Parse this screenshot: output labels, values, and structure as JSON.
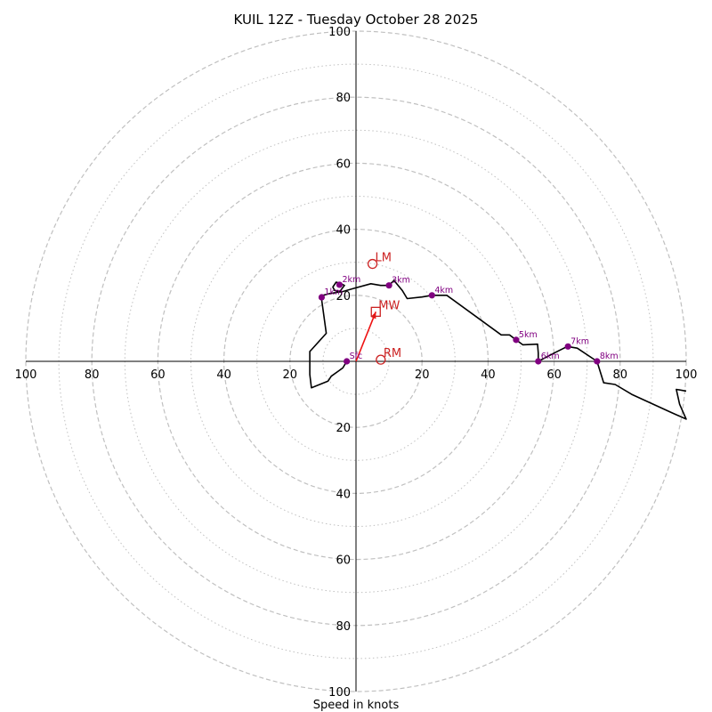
{
  "chart_data": {
    "type": "hodograph",
    "title": "KUIL 12Z - Tuesday October 28 2025",
    "xlabel": "Speed in knots",
    "units": "knots",
    "range": [
      -100,
      100
    ],
    "major_rings": [
      20,
      40,
      60,
      80,
      100
    ],
    "minor_rings": [
      10,
      30,
      50,
      70,
      90
    ],
    "x_ticks": [
      {
        "value": -100,
        "label": "100"
      },
      {
        "value": -80,
        "label": "80"
      },
      {
        "value": -60,
        "label": "60"
      },
      {
        "value": -40,
        "label": "40"
      },
      {
        "value": -20,
        "label": "20"
      },
      {
        "value": 20,
        "label": "20"
      },
      {
        "value": 40,
        "label": "40"
      },
      {
        "value": 60,
        "label": "60"
      },
      {
        "value": 80,
        "label": "80"
      },
      {
        "value": 100,
        "label": "100"
      }
    ],
    "y_ticks": [
      {
        "value": 100,
        "label": "100"
      },
      {
        "value": 80,
        "label": "80"
      },
      {
        "value": 60,
        "label": "60"
      },
      {
        "value": 40,
        "label": "40"
      },
      {
        "value": 20,
        "label": "20"
      },
      {
        "value": -20,
        "label": "20"
      },
      {
        "value": -40,
        "label": "40"
      },
      {
        "value": -60,
        "label": "60"
      },
      {
        "value": -80,
        "label": "80"
      },
      {
        "value": -100,
        "label": "100"
      }
    ],
    "trace": [
      [
        -2.8,
        0
      ],
      [
        -4,
        -2
      ],
      [
        -7.5,
        -4.5
      ],
      [
        -8.5,
        -6
      ],
      [
        -13.5,
        -8
      ],
      [
        -14,
        -4
      ],
      [
        -14,
        3
      ],
      [
        -13.5,
        3.5
      ],
      [
        -9,
        8.5
      ],
      [
        -10.5,
        19.5
      ],
      [
        -10,
        20
      ],
      [
        -8,
        20.5
      ],
      [
        -5,
        21
      ],
      [
        -3.5,
        23
      ],
      [
        -4.5,
        23.5
      ],
      [
        -6,
        24
      ],
      [
        -7,
        22.5
      ],
      [
        -6.5,
        21.5
      ],
      [
        -4.5,
        21
      ],
      [
        -1,
        22
      ],
      [
        4.5,
        23.5
      ],
      [
        7.5,
        23
      ],
      [
        10,
        23
      ],
      [
        11.5,
        24.5
      ],
      [
        14,
        21.5
      ],
      [
        15.5,
        19
      ],
      [
        20,
        19.5
      ],
      [
        23,
        20
      ],
      [
        27.5,
        20
      ],
      [
        44,
        8
      ],
      [
        46.5,
        8
      ],
      [
        48.5,
        6.5
      ],
      [
        50.5,
        5
      ],
      [
        55,
        5.2
      ],
      [
        55.2,
        2.5
      ],
      [
        55.2,
        0
      ],
      [
        60,
        2.5
      ],
      [
        64,
        4.5
      ],
      [
        67,
        4
      ],
      [
        73,
        0
      ],
      [
        75,
        -6.5
      ],
      [
        78.5,
        -7
      ],
      [
        83.5,
        -10
      ],
      [
        95.5,
        -15.5
      ],
      [
        100,
        -17.5
      ],
      [
        98,
        -13
      ],
      [
        97,
        -8.5
      ],
      [
        100,
        -9
      ]
    ],
    "height_markers": [
      {
        "label": "Sfc",
        "u": -2.8,
        "v": 0
      },
      {
        "label": "1km",
        "u": -10.4,
        "v": 19.4
      },
      {
        "label": "2km",
        "u": -5.0,
        "v": 23.2
      },
      {
        "label": "3km",
        "u": 10.0,
        "v": 23.0
      },
      {
        "label": "4km",
        "u": 23.0,
        "v": 20.0
      },
      {
        "label": "5km",
        "u": 48.5,
        "v": 6.5
      },
      {
        "label": "6km",
        "u": 55.2,
        "v": 0
      },
      {
        "label": "7km",
        "u": 64.2,
        "v": 4.5
      },
      {
        "label": "8km",
        "u": 73.0,
        "v": 0
      }
    ],
    "storm_motion": [
      {
        "label": "LM",
        "marker": "circle",
        "u": 5,
        "v": 29.5
      },
      {
        "label": "MW",
        "marker": "square",
        "u": 6,
        "v": 15
      },
      {
        "label": "RM",
        "marker": "circle",
        "u": 7.5,
        "v": 0.5
      }
    ],
    "shear_vector": {
      "from": [
        0,
        0
      ],
      "to": [
        6,
        15
      ]
    },
    "colors": {
      "grid": "#c0c0c0",
      "axis": "#000000",
      "trace": "#000000",
      "height_marker": "#800080",
      "storm_motion": "#cc2222",
      "shear_vector": "#ee1111"
    }
  }
}
